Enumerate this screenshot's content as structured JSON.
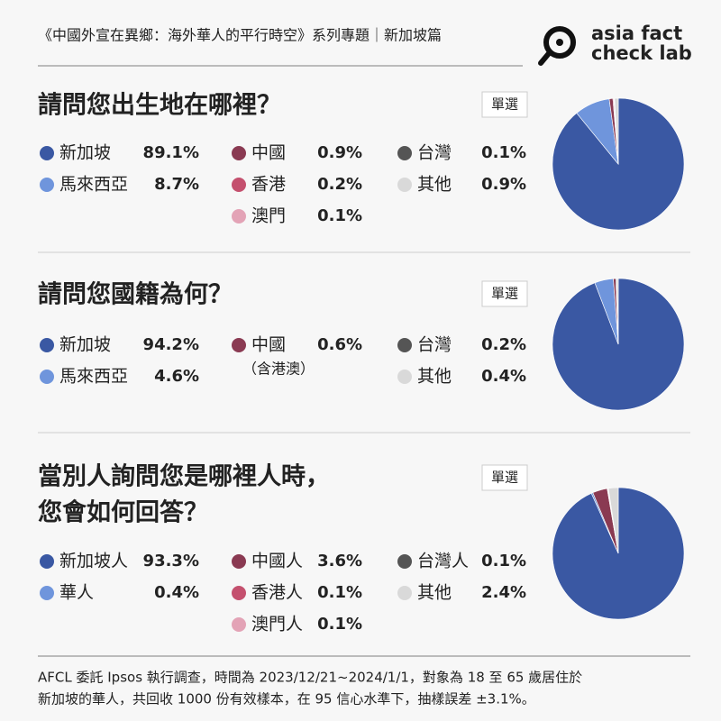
{
  "header": "《中國外宣在異鄉：海外華人的平行時空》系列專題｜新加坡篇",
  "logo": [
    "asia fact",
    "check lab"
  ],
  "footer": [
    "AFCL 委託 Ipsos 執行調查，時間為 2023/12/21~2024/1/1，對象為 18 至 65 歲居住於",
    "新加坡的華人，共回收 1000 份有效樣本，在 95 信心水準下，抽樣誤差 ±3.1%。"
  ],
  "chart_data": [
    {
      "type": "pie",
      "title": [
        "請問您出生地在哪裡？"
      ],
      "badge": "單選",
      "categories": [
        "新加坡",
        "馬來西亞",
        "中國",
        "香港",
        "澳門",
        "台灣",
        "其他"
      ],
      "values": [
        89.1,
        8.7,
        0.9,
        0.2,
        0.1,
        0.1,
        0.9
      ],
      "value_labels": [
        "89.1%",
        "8.7%",
        "0.9%",
        "0.2%",
        "0.1%",
        "0.1%",
        "0.9%"
      ],
      "colors": [
        "#3a58a3",
        "#6f95dc",
        "#8a3a52",
        "#c4506e",
        "#e3a3b6",
        "#555555",
        "#d9d9d9"
      ]
    },
    {
      "type": "pie",
      "title": [
        "請問您國籍為何？"
      ],
      "badge": "單選",
      "categories": [
        "新加坡",
        "馬來西亞",
        "中國",
        "台灣",
        "其他"
      ],
      "values": [
        94.2,
        4.6,
        0.6,
        0.2,
        0.4
      ],
      "value_labels": [
        "94.2%",
        "4.6%",
        "0.6%",
        "0.2%",
        "0.4%"
      ],
      "notes": [
        null,
        null,
        "（含港澳）",
        null,
        null
      ],
      "colors": [
        "#3a58a3",
        "#6f95dc",
        "#8a3a52",
        "#555555",
        "#d9d9d9"
      ]
    },
    {
      "type": "pie",
      "title": [
        "當別人詢問您是哪裡人時，",
        "您會如何回答？"
      ],
      "badge": "單選",
      "categories": [
        "新加坡人",
        "華人",
        "中國人",
        "香港人",
        "澳門人",
        "台灣人",
        "其他"
      ],
      "values": [
        93.3,
        0.4,
        3.6,
        0.1,
        0.1,
        0.1,
        2.4
      ],
      "value_labels": [
        "93.3%",
        "0.4%",
        "3.6%",
        "0.1%",
        "0.1%",
        "0.1%",
        "2.4%"
      ],
      "colors": [
        "#3a58a3",
        "#6f95dc",
        "#8a3a52",
        "#c4506e",
        "#e3a3b6",
        "#555555",
        "#d9d9d9"
      ]
    }
  ]
}
